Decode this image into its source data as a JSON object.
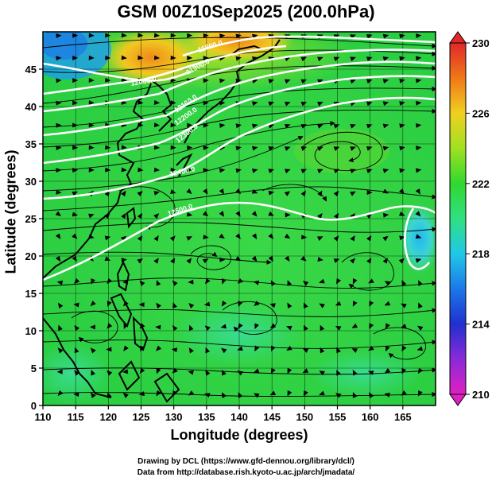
{
  "title": "GSM 00Z10Sep2025 (200.0hPa)",
  "xlabel": "Longitude (degrees)",
  "ylabel": "Latitude  (degrees)",
  "credits": {
    "line1": "Drawing by DCL (https://www.gfd-dennou.org/library/dcl/)",
    "line2": "Data from http://database.rish.kyoto-u.ac.jp/arch/jmadata/"
  },
  "chart_data": {
    "type": "heatmap",
    "variable": "temperature with streamlines",
    "xlim": [
      110,
      170
    ],
    "ylim": [
      0,
      50
    ],
    "x_ticks": [
      "110",
      "115",
      "120",
      "125",
      "130",
      "135",
      "140",
      "145",
      "150",
      "155",
      "160",
      "165"
    ],
    "y_ticks": [
      "0",
      "5",
      "10",
      "15",
      "20",
      "25",
      "30",
      "35",
      "40",
      "45"
    ],
    "colorbar": {
      "min": 210,
      "max": 230,
      "ticks": [
        "210",
        "214",
        "218",
        "222",
        "226",
        "230"
      ],
      "colors": [
        "#e020c0",
        "#8a2ad8",
        "#2030d0",
        "#1c78e8",
        "#20c8e8",
        "#30e080",
        "#30d830",
        "#a0e020",
        "#f0d020",
        "#f07818",
        "#e02828"
      ]
    },
    "contour_labels": [
      "11800.0",
      "11900.0",
      "12000.0",
      "12100.0",
      "12200.0",
      "12300.0",
      "12400.0",
      "12500.0"
    ],
    "colors": {
      "land_outline": "#000000",
      "contour": "#ffffff",
      "grid": "#000000"
    }
  }
}
